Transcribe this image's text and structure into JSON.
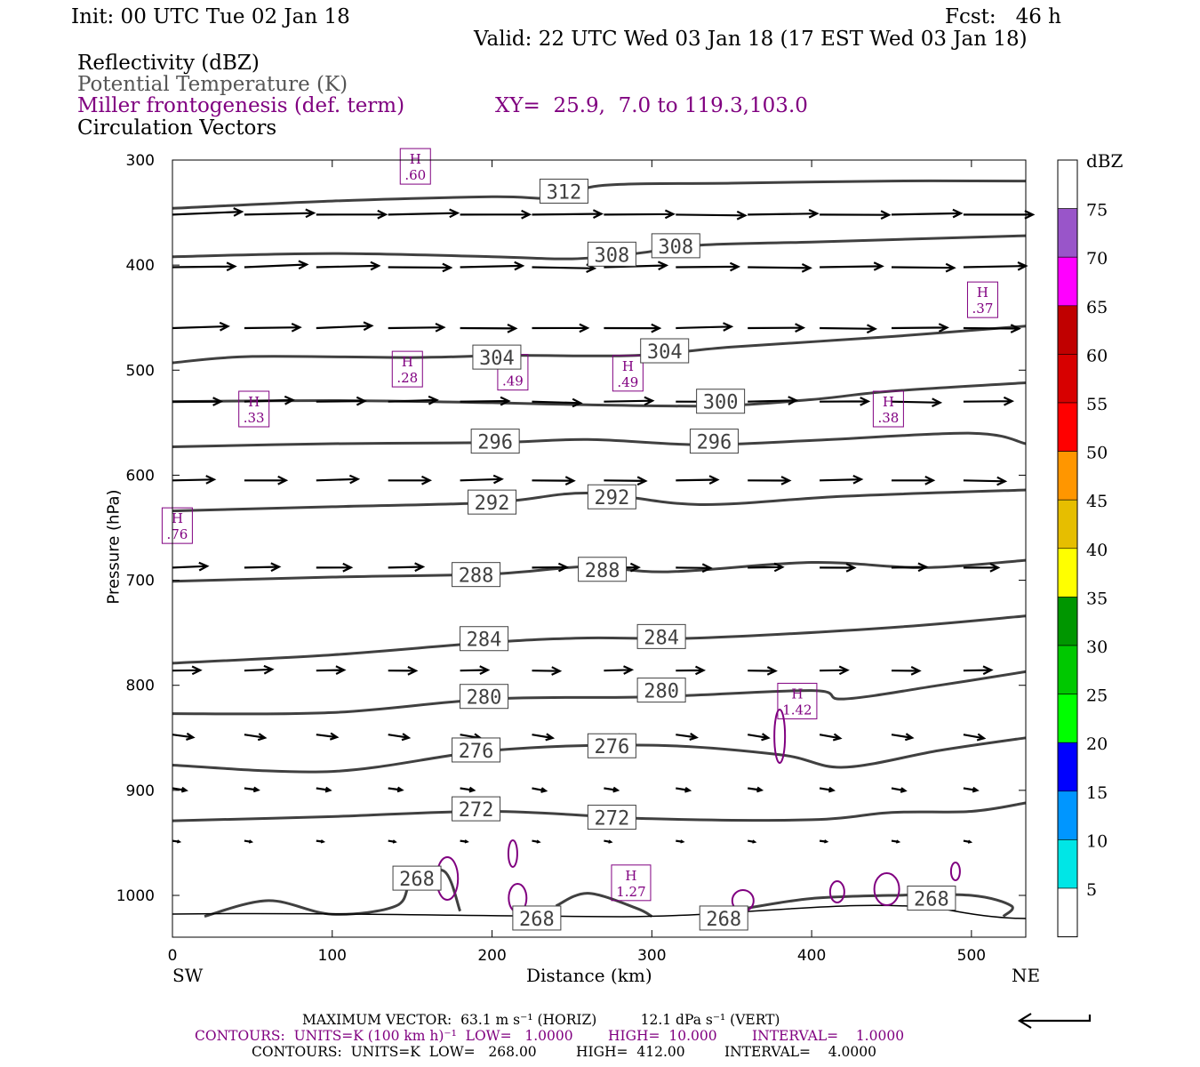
{
  "header": {
    "init": "Init: 00 UTC Tue 02 Jan 18",
    "fcst": "Fcst:   46 h",
    "valid": "Valid: 22 UTC Wed 03 Jan 18 (17 EST Wed 03 Jan 18)",
    "fields": [
      "Reflectivity (dBZ)",
      "Potential Temperature (K)",
      "Miller frontogenesis (def. term)",
      "Circulation Vectors"
    ],
    "xy": "XY=  25.9,  7.0 to 119.3,103.0"
  },
  "chart_data": {
    "type": "contour",
    "xlabel": "Distance (km)",
    "ylabel": "Pressure (hPa)",
    "xlim": [
      0,
      534
    ],
    "ylim": [
      1040,
      300
    ],
    "x_ticks": [
      0,
      100,
      200,
      300,
      400,
      500
    ],
    "y_ticks": [
      300,
      400,
      500,
      600,
      700,
      800,
      900,
      1000
    ],
    "x_end_labels": {
      "left": "SW",
      "right": "NE"
    },
    "colors": {
      "theta": "#404040",
      "frontogenesis": "#800080",
      "vectors": "#000000"
    },
    "theta_contours": [
      {
        "level": 312,
        "label": "312",
        "points": [
          [
            0,
            346
          ],
          [
            100,
            339
          ],
          [
            200,
            335
          ],
          [
            240,
            336
          ],
          [
            270,
            324
          ],
          [
            350,
            322
          ],
          [
            450,
            320
          ],
          [
            534,
            320
          ]
        ],
        "labels_at": [
          [
            245,
            330
          ]
        ]
      },
      {
        "level": 308,
        "label": "308",
        "points": [
          [
            0,
            392
          ],
          [
            100,
            389
          ],
          [
            200,
            392
          ],
          [
            250,
            394
          ],
          [
            290,
            389
          ],
          [
            330,
            381
          ],
          [
            400,
            378
          ],
          [
            534,
            372
          ]
        ],
        "labels_at": [
          [
            275,
            390
          ],
          [
            315,
            382
          ]
        ]
      },
      {
        "level": 304,
        "label": "304",
        "points": [
          [
            0,
            493
          ],
          [
            50,
            487
          ],
          [
            150,
            488
          ],
          [
            210,
            486
          ],
          [
            290,
            486
          ],
          [
            350,
            478
          ],
          [
            450,
            468
          ],
          [
            534,
            458
          ]
        ],
        "labels_at": [
          [
            203,
            488
          ],
          [
            308,
            482
          ]
        ]
      },
      {
        "level": 300,
        "label": "300",
        "points": [
          [
            0,
            530
          ],
          [
            100,
            529
          ],
          [
            200,
            531
          ],
          [
            260,
            533
          ],
          [
            340,
            534
          ],
          [
            400,
            528
          ],
          [
            450,
            520
          ],
          [
            534,
            512
          ]
        ],
        "labels_at": [
          [
            343,
            530
          ]
        ]
      },
      {
        "level": 296,
        "label": "296",
        "points": [
          [
            0,
            573
          ],
          [
            100,
            570
          ],
          [
            200,
            569
          ],
          [
            260,
            566
          ],
          [
            330,
            571
          ],
          [
            400,
            567
          ],
          [
            500,
            560
          ],
          [
            534,
            570
          ]
        ],
        "labels_at": [
          [
            202,
            568
          ],
          [
            339,
            568
          ]
        ]
      },
      {
        "level": 292,
        "label": "292",
        "points": [
          [
            0,
            634
          ],
          [
            100,
            630
          ],
          [
            200,
            626
          ],
          [
            260,
            617
          ],
          [
            330,
            628
          ],
          [
            420,
            620
          ],
          [
            534,
            614
          ]
        ],
        "labels_at": [
          [
            200,
            626
          ],
          [
            275,
            621
          ]
        ]
      },
      {
        "level": 288,
        "label": "288",
        "points": [
          [
            0,
            701
          ],
          [
            100,
            697
          ],
          [
            200,
            694
          ],
          [
            260,
            687
          ],
          [
            310,
            692
          ],
          [
            400,
            683
          ],
          [
            470,
            688
          ],
          [
            534,
            681
          ]
        ],
        "labels_at": [
          [
            190,
            695
          ],
          [
            269,
            690
          ]
        ]
      },
      {
        "level": 284,
        "label": "284",
        "points": [
          [
            0,
            779
          ],
          [
            100,
            771
          ],
          [
            200,
            759
          ],
          [
            260,
            755
          ],
          [
            330,
            755
          ],
          [
            450,
            745
          ],
          [
            534,
            734
          ]
        ],
        "labels_at": [
          [
            195,
            756
          ],
          [
            306,
            754
          ]
        ]
      },
      {
        "level": 280,
        "label": "280",
        "points": [
          [
            0,
            827
          ],
          [
            100,
            826
          ],
          [
            200,
            813
          ],
          [
            300,
            811
          ],
          [
            400,
            805
          ],
          [
            420,
            813
          ],
          [
            480,
            800
          ],
          [
            534,
            787
          ]
        ],
        "labels_at": [
          [
            195,
            811
          ],
          [
            306,
            805
          ]
        ]
      },
      {
        "level": 276,
        "label": "276",
        "points": [
          [
            0,
            876
          ],
          [
            100,
            882
          ],
          [
            200,
            862
          ],
          [
            300,
            857
          ],
          [
            380,
            866
          ],
          [
            420,
            878
          ],
          [
            480,
            862
          ],
          [
            534,
            850
          ]
        ],
        "labels_at": [
          [
            190,
            862
          ],
          [
            275,
            858
          ]
        ]
      },
      {
        "level": 272,
        "label": "272",
        "points": [
          [
            0,
            929
          ],
          [
            100,
            925
          ],
          [
            200,
            920
          ],
          [
            300,
            927
          ],
          [
            400,
            928
          ],
          [
            450,
            921
          ],
          [
            500,
            920
          ],
          [
            534,
            912
          ]
        ],
        "labels_at": [
          [
            190,
            918
          ],
          [
            275,
            926
          ]
        ]
      },
      {
        "level": 268,
        "label": "268",
        "points": [
          [
            20,
            1020
          ],
          [
            60,
            1005
          ],
          [
            100,
            1018
          ],
          [
            140,
            1010
          ],
          [
            150,
            985
          ],
          [
            170,
            977
          ],
          [
            180,
            1015
          ]
        ],
        "labels_at": [
          [
            153,
            984
          ]
        ]
      },
      {
        "level": 268,
        "label": "268",
        "points": [
          [
            240,
            1010
          ],
          [
            260,
            998
          ],
          [
            290,
            1012
          ],
          [
            300,
            1020
          ]
        ],
        "labels_at": [
          [
            228,
            1022
          ],
          [
            345,
            1022
          ]
        ]
      },
      {
        "level": 268,
        "label": "268",
        "points": [
          [
            360,
            1012
          ],
          [
            400,
            1003
          ],
          [
            450,
            1000
          ],
          [
            500,
            1000
          ],
          [
            525,
            1010
          ],
          [
            520,
            1020
          ]
        ],
        "labels_at": [
          [
            475,
            1003
          ]
        ]
      }
    ],
    "frontogenesis_maxima": [
      {
        "label": "H",
        "value": ".60",
        "x": 152,
        "p": 306
      },
      {
        "label": "H",
        "value": ".37",
        "x": 507,
        "p": 433
      },
      {
        "label": "H",
        "value": ".28",
        "x": 147,
        "p": 499
      },
      {
        "label": "H",
        "value": ".49",
        "x": 213,
        "p": 502
      },
      {
        "label": "H",
        "value": ".49",
        "x": 285,
        "p": 503
      },
      {
        "label": "H",
        "value": ".33",
        "x": 51,
        "p": 537
      },
      {
        "label": "H",
        "value": ".38",
        "x": 448,
        "p": 537
      },
      {
        "label": "H",
        "value": ".76",
        "x": 3,
        "p": 648
      },
      {
        "label": "H",
        "value": "1.42",
        "x": 391,
        "p": 815
      },
      {
        "label": "H",
        "value": "1.27",
        "x": 287,
        "p": 988
      }
    ],
    "vector_rows_p": [
      352,
      402,
      460,
      530,
      605,
      688,
      786,
      847,
      898,
      948
    ],
    "vector_cols_x": [
      0,
      45,
      90,
      135,
      180,
      225,
      270,
      315,
      360,
      405,
      450,
      495
    ]
  },
  "footer": {
    "max_vector": "MAXIMUM VECTOR:  63.1 m s⁻¹ (HORIZ)          12.1 dPa s⁻¹ (VERT)",
    "contours1": "CONTOURS:  UNITS=K (100 km h)⁻¹  LOW=   1.0000        HIGH=  10.000        INTERVAL=    1.0000",
    "contours2": "CONTOURS:  UNITS=K  LOW=   268.00         HIGH=  412.00         INTERVAL=    4.0000"
  },
  "colorbar": {
    "title": "dBZ",
    "ticks": [
      "5",
      "10",
      "15",
      "20",
      "25",
      "30",
      "35",
      "40",
      "45",
      "50",
      "55",
      "60",
      "65",
      "70",
      "75"
    ],
    "colors": [
      "#ffffff",
      "#00e6e6",
      "#0096ff",
      "#0000ff",
      "#00ff00",
      "#00c800",
      "#009600",
      "#ffff00",
      "#e6be00",
      "#ff9600",
      "#ff0000",
      "#d70000",
      "#c00000",
      "#ff00ff",
      "#9955c9",
      "#ffffff"
    ]
  }
}
